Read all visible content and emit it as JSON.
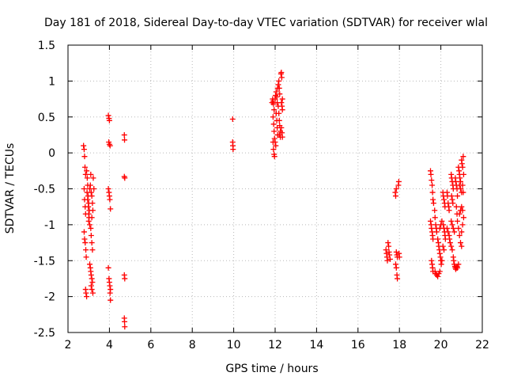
{
  "chart_data": {
    "type": "scatter",
    "title": "Day 181 of 2018, Sidereal Day-to-day VTEC variation (SDTVAR) for receiver wlal",
    "xlabel": "GPS time / hours",
    "ylabel": "SDTVAR / TECUs",
    "xlim": [
      2,
      22
    ],
    "ylim": [
      -2.5,
      1.5
    ],
    "xticks": [
      2,
      4,
      6,
      8,
      10,
      12,
      14,
      16,
      18,
      20,
      22
    ],
    "yticks": [
      -2.5,
      -2,
      -1.5,
      -1,
      -0.5,
      0,
      0.5,
      1,
      1.5
    ],
    "xtick_labels": [
      "2",
      "4",
      "6",
      "8",
      "10",
      "12",
      "14",
      "16",
      "18",
      "20",
      "22"
    ],
    "ytick_labels": [
      "-2.5",
      "-2",
      "-1.5",
      "-1",
      "-0.5",
      "0",
      "0.5",
      "1",
      "1.5"
    ],
    "grid": true,
    "marker": "+",
    "color": "#ff0000",
    "series": [
      {
        "name": "SDTVAR",
        "points": [
          [
            2.75,
            0.1
          ],
          [
            2.78,
            0.05
          ],
          [
            2.8,
            -0.05
          ],
          [
            2.82,
            -0.2
          ],
          [
            2.85,
            -0.3
          ],
          [
            2.78,
            -0.5
          ],
          [
            2.8,
            -0.65
          ],
          [
            2.83,
            -0.75
          ],
          [
            2.85,
            -0.85
          ],
          [
            2.78,
            -1.1
          ],
          [
            2.8,
            -1.2
          ],
          [
            2.83,
            -1.25
          ],
          [
            2.86,
            -1.35
          ],
          [
            2.88,
            -1.45
          ],
          [
            2.85,
            -1.9
          ],
          [
            2.87,
            -1.95
          ],
          [
            2.9,
            -2.0
          ],
          [
            2.9,
            -0.25
          ],
          [
            2.93,
            -0.35
          ],
          [
            2.95,
            -0.45
          ],
          [
            2.92,
            -0.55
          ],
          [
            2.95,
            -0.65
          ],
          [
            2.98,
            -0.75
          ],
          [
            3.0,
            -0.85
          ],
          [
            3.02,
            -0.9
          ],
          [
            3.0,
            -0.95
          ],
          [
            3.05,
            -1.0
          ],
          [
            2.97,
            -0.6
          ],
          [
            3.0,
            -0.7
          ],
          [
            3.03,
            -0.8
          ],
          [
            3.05,
            -0.5
          ],
          [
            3.08,
            -0.45
          ],
          [
            3.1,
            -0.3
          ],
          [
            3.12,
            -0.55
          ],
          [
            3.15,
            -0.6
          ],
          [
            3.18,
            -0.7
          ],
          [
            3.2,
            -0.8
          ],
          [
            3.15,
            -0.9
          ],
          [
            3.1,
            -1.05
          ],
          [
            3.12,
            -1.15
          ],
          [
            3.15,
            -1.25
          ],
          [
            3.18,
            -1.35
          ],
          [
            3.05,
            -1.55
          ],
          [
            3.08,
            -1.6
          ],
          [
            3.1,
            -1.65
          ],
          [
            3.12,
            -1.7
          ],
          [
            3.15,
            -1.75
          ],
          [
            3.18,
            -1.8
          ],
          [
            3.12,
            -1.85
          ],
          [
            3.15,
            -1.9
          ],
          [
            3.2,
            -1.95
          ],
          [
            3.22,
            -0.35
          ],
          [
            3.25,
            -0.5
          ],
          [
            3.95,
            0.52
          ],
          [
            3.98,
            0.48
          ],
          [
            4.0,
            0.45
          ],
          [
            3.97,
            0.15
          ],
          [
            4.0,
            0.12
          ],
          [
            4.03,
            0.1
          ],
          [
            3.95,
            -0.5
          ],
          [
            3.98,
            -0.55
          ],
          [
            4.0,
            -0.6
          ],
          [
            4.02,
            -0.65
          ],
          [
            4.05,
            -0.78
          ],
          [
            3.95,
            -1.6
          ],
          [
            3.98,
            -1.75
          ],
          [
            4.0,
            -1.8
          ],
          [
            4.02,
            -1.85
          ],
          [
            4.05,
            -1.9
          ],
          [
            4.03,
            -1.95
          ],
          [
            4.05,
            -2.05
          ],
          [
            4.72,
            0.25
          ],
          [
            4.73,
            0.18
          ],
          [
            4.72,
            -0.33
          ],
          [
            4.74,
            -0.35
          ],
          [
            4.72,
            -1.7
          ],
          [
            4.74,
            -1.75
          ],
          [
            4.72,
            -2.3
          ],
          [
            4.73,
            -2.35
          ],
          [
            4.74,
            -2.42
          ],
          [
            9.95,
            0.47
          ],
          [
            9.95,
            0.15
          ],
          [
            9.96,
            0.1
          ],
          [
            9.97,
            0.05
          ],
          [
            11.85,
            0.7
          ],
          [
            11.88,
            0.75
          ],
          [
            11.9,
            0.72
          ],
          [
            11.92,
            0.68
          ],
          [
            11.95,
            0.6
          ],
          [
            11.9,
            0.5
          ],
          [
            11.93,
            0.4
          ],
          [
            11.95,
            0.3
          ],
          [
            11.97,
            0.2
          ],
          [
            11.9,
            0.15
          ],
          [
            11.92,
            0.05
          ],
          [
            11.95,
            -0.02
          ],
          [
            11.97,
            -0.05
          ],
          [
            12.0,
            0.75
          ],
          [
            12.02,
            0.8
          ],
          [
            12.05,
            0.85
          ],
          [
            12.08,
            0.78
          ],
          [
            12.1,
            0.7
          ],
          [
            12.05,
            0.55
          ],
          [
            12.08,
            0.45
          ],
          [
            12.1,
            0.35
          ],
          [
            12.12,
            0.25
          ],
          [
            12.0,
            0.15
          ],
          [
            12.03,
            0.1
          ],
          [
            12.12,
            0.9
          ],
          [
            12.15,
            0.95
          ],
          [
            12.18,
            1.0
          ],
          [
            12.2,
            0.9
          ],
          [
            12.22,
            0.82
          ],
          [
            12.15,
            0.65
          ],
          [
            12.18,
            0.55
          ],
          [
            12.2,
            0.45
          ],
          [
            12.22,
            0.38
          ],
          [
            12.25,
            0.3
          ],
          [
            12.2,
            0.25
          ],
          [
            12.25,
            0.22
          ],
          [
            12.28,
            1.1
          ],
          [
            12.3,
            1.12
          ],
          [
            12.32,
            1.05
          ],
          [
            12.35,
            0.75
          ],
          [
            12.3,
            0.7
          ],
          [
            12.33,
            0.65
          ],
          [
            12.35,
            0.6
          ],
          [
            12.3,
            0.35
          ],
          [
            12.33,
            0.28
          ],
          [
            12.35,
            0.22
          ],
          [
            17.35,
            -1.35
          ],
          [
            17.38,
            -1.4
          ],
          [
            17.4,
            -1.45
          ],
          [
            17.42,
            -1.5
          ],
          [
            17.45,
            -1.25
          ],
          [
            17.48,
            -1.3
          ],
          [
            17.5,
            -1.38
          ],
          [
            17.52,
            -1.42
          ],
          [
            17.55,
            -1.48
          ],
          [
            17.8,
            -0.55
          ],
          [
            17.82,
            -0.6
          ],
          [
            17.85,
            -0.5
          ],
          [
            17.85,
            -1.38
          ],
          [
            17.88,
            -1.42
          ],
          [
            17.9,
            -1.45
          ],
          [
            17.82,
            -1.55
          ],
          [
            17.85,
            -1.6
          ],
          [
            17.88,
            -1.7
          ],
          [
            17.9,
            -1.75
          ],
          [
            17.95,
            -0.45
          ],
          [
            17.97,
            -0.4
          ],
          [
            17.98,
            -1.4
          ],
          [
            18.0,
            -1.45
          ],
          [
            19.5,
            -0.25
          ],
          [
            19.52,
            -0.3
          ],
          [
            19.55,
            -0.38
          ],
          [
            19.58,
            -0.45
          ],
          [
            19.6,
            -0.55
          ],
          [
            19.62,
            -0.65
          ],
          [
            19.65,
            -0.7
          ],
          [
            19.5,
            -0.95
          ],
          [
            19.53,
            -1.0
          ],
          [
            19.55,
            -1.05
          ],
          [
            19.58,
            -1.1
          ],
          [
            19.6,
            -1.15
          ],
          [
            19.62,
            -1.2
          ],
          [
            19.55,
            -1.5
          ],
          [
            19.58,
            -1.55
          ],
          [
            19.6,
            -1.6
          ],
          [
            19.62,
            -1.65
          ],
          [
            19.7,
            -0.8
          ],
          [
            19.72,
            -0.9
          ],
          [
            19.75,
            -1.0
          ],
          [
            19.78,
            -1.05
          ],
          [
            19.8,
            -1.1
          ],
          [
            19.72,
            -1.65
          ],
          [
            19.75,
            -1.68
          ],
          [
            19.8,
            -1.7
          ],
          [
            19.85,
            -1.72
          ],
          [
            19.9,
            -1.68
          ],
          [
            19.95,
            -1.65
          ],
          [
            19.85,
            -1.2
          ],
          [
            19.88,
            -1.25
          ],
          [
            19.9,
            -1.3
          ],
          [
            19.93,
            -1.35
          ],
          [
            19.95,
            -1.4
          ],
          [
            19.98,
            -1.45
          ],
          [
            20.0,
            -1.5
          ],
          [
            20.02,
            -1.55
          ],
          [
            20.05,
            -1.5
          ],
          [
            19.95,
            -1.05
          ],
          [
            20.0,
            -1.0
          ],
          [
            20.05,
            -0.95
          ],
          [
            20.1,
            -0.55
          ],
          [
            20.12,
            -0.6
          ],
          [
            20.15,
            -0.65
          ],
          [
            20.18,
            -0.7
          ],
          [
            20.2,
            -0.75
          ],
          [
            20.12,
            -1.0
          ],
          [
            20.15,
            -1.05
          ],
          [
            20.18,
            -1.1
          ],
          [
            20.2,
            -1.15
          ],
          [
            20.22,
            -1.2
          ],
          [
            20.1,
            -1.3
          ],
          [
            20.15,
            -1.35
          ],
          [
            20.3,
            -0.55
          ],
          [
            20.32,
            -0.6
          ],
          [
            20.35,
            -0.7
          ],
          [
            20.38,
            -0.75
          ],
          [
            20.4,
            -0.8
          ],
          [
            20.3,
            -1.05
          ],
          [
            20.35,
            -1.1
          ],
          [
            20.4,
            -1.15
          ],
          [
            20.42,
            -1.2
          ],
          [
            20.45,
            -1.25
          ],
          [
            20.5,
            -1.3
          ],
          [
            20.55,
            -1.35
          ],
          [
            20.5,
            -0.3
          ],
          [
            20.52,
            -0.35
          ],
          [
            20.55,
            -0.4
          ],
          [
            20.58,
            -0.45
          ],
          [
            20.6,
            -0.5
          ],
          [
            20.52,
            -0.6
          ],
          [
            20.55,
            -0.65
          ],
          [
            20.58,
            -0.7
          ],
          [
            20.5,
            -0.95
          ],
          [
            20.55,
            -1.0
          ],
          [
            20.6,
            -1.05
          ],
          [
            20.65,
            -1.1
          ],
          [
            20.6,
            -1.45
          ],
          [
            20.62,
            -1.5
          ],
          [
            20.65,
            -1.55
          ],
          [
            20.68,
            -1.58
          ],
          [
            20.7,
            -1.6
          ],
          [
            20.72,
            -1.62
          ],
          [
            20.75,
            -1.6
          ],
          [
            20.78,
            -1.58
          ],
          [
            20.8,
            -1.6
          ],
          [
            20.85,
            -1.55
          ],
          [
            20.7,
            -0.35
          ],
          [
            20.72,
            -0.4
          ],
          [
            20.75,
            -0.45
          ],
          [
            20.78,
            -0.5
          ],
          [
            20.8,
            -0.6
          ],
          [
            20.75,
            -0.75
          ],
          [
            20.78,
            -0.85
          ],
          [
            20.8,
            -0.95
          ],
          [
            20.85,
            -1.05
          ],
          [
            20.9,
            -1.15
          ],
          [
            20.95,
            -1.25
          ],
          [
            21.0,
            -1.3
          ],
          [
            20.85,
            -0.2
          ],
          [
            20.88,
            -0.25
          ],
          [
            20.9,
            -0.3
          ],
          [
            20.92,
            -0.35
          ],
          [
            20.95,
            -0.4
          ],
          [
            20.9,
            -0.45
          ],
          [
            20.95,
            -0.5
          ],
          [
            21.0,
            -0.55
          ],
          [
            20.9,
            -0.85
          ],
          [
            20.95,
            -0.8
          ],
          [
            21.0,
            -0.75
          ],
          [
            21.05,
            -0.8
          ],
          [
            21.0,
            -0.1
          ],
          [
            21.02,
            -0.15
          ],
          [
            21.05,
            -0.2
          ],
          [
            21.08,
            -0.05
          ],
          [
            21.1,
            -0.3
          ],
          [
            21.05,
            -0.45
          ],
          [
            21.08,
            -0.55
          ],
          [
            21.1,
            -0.9
          ],
          [
            21.05,
            -1.0
          ],
          [
            21.0,
            -1.1
          ]
        ]
      }
    ]
  }
}
